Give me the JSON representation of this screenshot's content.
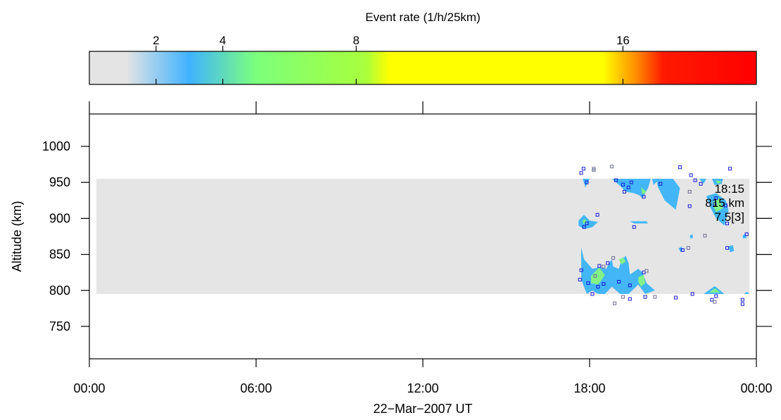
{
  "chart_data": {
    "type": "heatmap",
    "colorbar": {
      "title": "Event rate (1/h/25km)",
      "ticks": [
        2,
        4,
        8,
        16
      ],
      "range": [
        0,
        20
      ],
      "stops": [
        {
          "v": 0,
          "color": "#e4e4e4"
        },
        {
          "v": 1.1,
          "color": "#e4e4e4"
        },
        {
          "v": 3,
          "color": "#3fb3ff"
        },
        {
          "v": 5,
          "color": "#7cff7c"
        },
        {
          "v": 8.3,
          "color": "#a8ff3c"
        },
        {
          "v": 9,
          "color": "#ffff00"
        },
        {
          "v": 15.4,
          "color": "#ffff00"
        },
        {
          "v": 16.4,
          "color": "#ff8c00"
        },
        {
          "v": 17.2,
          "color": "#ff1a00"
        },
        {
          "v": 20,
          "color": "#ff0000"
        }
      ]
    },
    "xaxis": {
      "label": "22−Mar−2007 UT",
      "range_hours": [
        0,
        24
      ],
      "ticks": [
        {
          "h": 0,
          "label": "00:00"
        },
        {
          "h": 6,
          "label": "06:00"
        },
        {
          "h": 12,
          "label": "12:00"
        },
        {
          "h": 18,
          "label": "18:00"
        },
        {
          "h": 24,
          "label": "00:00"
        }
      ]
    },
    "yaxis": {
      "label": "Altitude (km)",
      "range": [
        705,
        1045
      ],
      "ticks": [
        750,
        800,
        850,
        900,
        950,
        1000
      ]
    },
    "coverage": {
      "h": [
        0.25,
        23.75
      ],
      "alt": [
        795,
        955
      ],
      "color": "#e5e5e5"
    },
    "patches": [
      {
        "level": "blue",
        "pts": [
          [
            17.75,
            955
          ],
          [
            18.0,
            955
          ],
          [
            17.85,
            943
          ]
        ]
      },
      {
        "level": "blue",
        "pts": [
          [
            18.8,
            955
          ],
          [
            19.1,
            945
          ],
          [
            19.3,
            937
          ],
          [
            19.6,
            935
          ],
          [
            19.8,
            932
          ],
          [
            19.9,
            928
          ],
          [
            20.1,
            942
          ],
          [
            20.2,
            955
          ]
        ]
      },
      {
        "level": "green",
        "pts": [
          [
            19.85,
            943
          ],
          [
            20.05,
            937
          ],
          [
            19.9,
            933
          ]
        ]
      },
      {
        "level": "blue",
        "pts": [
          [
            20.25,
            955
          ],
          [
            20.5,
            955
          ],
          [
            20.3,
            946
          ]
        ]
      },
      {
        "level": "blue",
        "pts": [
          [
            20.4,
            955
          ],
          [
            21.0,
            955
          ],
          [
            21.25,
            942
          ],
          [
            21.1,
            912
          ],
          [
            20.7,
            925
          ],
          [
            20.45,
            944
          ]
        ]
      },
      {
        "level": "blue",
        "pts": [
          [
            21.95,
            955
          ],
          [
            22.2,
            955
          ],
          [
            22.1,
            948
          ]
        ]
      },
      {
        "level": "blue",
        "pts": [
          [
            22.4,
            955
          ],
          [
            22.8,
            955
          ],
          [
            22.75,
            948
          ],
          [
            22.5,
            946
          ]
        ]
      },
      {
        "level": "green",
        "pts": [
          [
            22.55,
            953
          ],
          [
            22.75,
            951
          ],
          [
            22.6,
            948
          ]
        ]
      },
      {
        "level": "blue",
        "pts": [
          [
            22.2,
            931
          ],
          [
            22.55,
            935
          ],
          [
            22.9,
            925
          ],
          [
            23.0,
            911
          ],
          [
            22.85,
            890
          ],
          [
            22.55,
            900
          ],
          [
            22.35,
            915
          ]
        ]
      },
      {
        "level": "green",
        "pts": [
          [
            22.4,
            922
          ],
          [
            22.65,
            928
          ],
          [
            22.8,
            914
          ],
          [
            22.55,
            909
          ]
        ]
      },
      {
        "level": "blue",
        "pts": [
          [
            17.6,
            897
          ],
          [
            17.8,
            905
          ],
          [
            18.0,
            897
          ],
          [
            18.3,
            895
          ],
          [
            18.1,
            888
          ],
          [
            17.8,
            885
          ],
          [
            17.6,
            890
          ]
        ]
      },
      {
        "level": "green",
        "pts": [
          [
            17.75,
            897
          ],
          [
            17.85,
            899
          ],
          [
            17.9,
            894
          ],
          [
            17.78,
            892
          ]
        ]
      },
      {
        "level": "blue",
        "pts": [
          [
            19.45,
            896
          ],
          [
            20.05,
            896
          ],
          [
            20.1,
            893
          ],
          [
            19.6,
            893
          ]
        ]
      },
      {
        "level": "blue",
        "pts": [
          [
            21.2,
            858
          ],
          [
            21.3,
            861
          ],
          [
            21.35,
            856
          ],
          [
            21.28,
            853
          ]
        ]
      },
      {
        "level": "blue",
        "pts": [
          [
            21.6,
            876
          ],
          [
            21.7,
            878
          ],
          [
            21.72,
            873
          ],
          [
            21.63,
            872
          ]
        ]
      },
      {
        "level": "blue",
        "pts": [
          [
            23.0,
            861
          ],
          [
            23.15,
            863
          ],
          [
            23.2,
            855
          ],
          [
            23.05,
            853
          ]
        ]
      },
      {
        "level": "blue",
        "pts": [
          [
            23.5,
            876
          ],
          [
            23.6,
            879
          ],
          [
            23.65,
            873
          ],
          [
            23.53,
            872
          ]
        ]
      },
      {
        "level": "blue",
        "pts": [
          [
            17.7,
            860
          ],
          [
            17.8,
            843
          ],
          [
            18.1,
            830
          ],
          [
            18.35,
            832
          ],
          [
            18.6,
            830
          ],
          [
            18.7,
            838
          ],
          [
            18.8,
            843
          ],
          [
            18.85,
            833
          ],
          [
            19.05,
            830
          ],
          [
            19.15,
            843
          ],
          [
            19.3,
            848
          ],
          [
            19.4,
            838
          ],
          [
            19.45,
            822
          ],
          [
            19.75,
            830
          ],
          [
            19.9,
            825
          ],
          [
            20.05,
            810
          ],
          [
            20.35,
            800
          ],
          [
            20.0,
            795
          ],
          [
            19.75,
            808
          ],
          [
            19.4,
            795
          ],
          [
            19.1,
            795
          ],
          [
            18.8,
            805
          ],
          [
            18.55,
            795
          ],
          [
            18.3,
            795
          ],
          [
            18.1,
            800
          ],
          [
            17.9,
            795
          ],
          [
            17.7,
            815
          ]
        ]
      },
      {
        "level": "green",
        "pts": [
          [
            18.05,
            820
          ],
          [
            18.35,
            832
          ],
          [
            18.55,
            821
          ],
          [
            18.3,
            808
          ],
          [
            18.05,
            810
          ]
        ]
      },
      {
        "level": "green",
        "pts": [
          [
            19.05,
            843
          ],
          [
            19.2,
            846
          ],
          [
            19.3,
            840
          ],
          [
            19.15,
            836
          ]
        ]
      },
      {
        "level": "green",
        "pts": [
          [
            19.75,
            818
          ],
          [
            19.95,
            822
          ],
          [
            20.0,
            810
          ],
          [
            19.85,
            805
          ],
          [
            19.75,
            812
          ]
        ]
      },
      {
        "level": "blue",
        "pts": [
          [
            22.1,
            795
          ],
          [
            22.5,
            806
          ],
          [
            22.85,
            795
          ]
        ]
      },
      {
        "level": "green",
        "pts": [
          [
            22.3,
            797
          ],
          [
            22.5,
            803
          ],
          [
            22.7,
            797
          ]
        ]
      },
      {
        "level": "blue",
        "pts": [
          [
            23.55,
            795
          ],
          [
            23.75,
            795
          ],
          [
            23.65,
            798
          ]
        ]
      }
    ],
    "points": [
      {
        "h": 17.7,
        "alt": 963,
        "c": "b"
      },
      {
        "h": 17.78,
        "alt": 969,
        "c": "b"
      },
      {
        "h": 17.9,
        "alt": 950,
        "c": "b"
      },
      {
        "h": 18.15,
        "alt": 969,
        "c": "g"
      },
      {
        "h": 18.15,
        "alt": 967,
        "c": "g"
      },
      {
        "h": 18.8,
        "alt": 972,
        "c": "g"
      },
      {
        "h": 18.95,
        "alt": 953,
        "c": "b"
      },
      {
        "h": 19.2,
        "alt": 947,
        "c": "b"
      },
      {
        "h": 19.5,
        "alt": 950,
        "c": "b"
      },
      {
        "h": 19.4,
        "alt": 943,
        "c": "b"
      },
      {
        "h": 19.25,
        "alt": 937,
        "c": "b"
      },
      {
        "h": 19.95,
        "alt": 930,
        "c": "b"
      },
      {
        "h": 20.55,
        "alt": 948,
        "c": "b"
      },
      {
        "h": 21.25,
        "alt": 971,
        "c": "b"
      },
      {
        "h": 21.65,
        "alt": 960,
        "c": "b"
      },
      {
        "h": 21.8,
        "alt": 953,
        "c": "b"
      },
      {
        "h": 21.6,
        "alt": 937,
        "c": "g"
      },
      {
        "h": 21.6,
        "alt": 917,
        "c": "b"
      },
      {
        "h": 22.0,
        "alt": 948,
        "c": "b"
      },
      {
        "h": 22.5,
        "alt": 920,
        "c": "b"
      },
      {
        "h": 22.55,
        "alt": 928,
        "c": "b"
      },
      {
        "h": 23.05,
        "alt": 969,
        "c": "b"
      },
      {
        "h": 22.95,
        "alt": 893,
        "c": "b"
      },
      {
        "h": 22.9,
        "alt": 918,
        "c": "b"
      },
      {
        "h": 17.8,
        "alt": 888,
        "c": "b"
      },
      {
        "h": 17.9,
        "alt": 893,
        "c": "b"
      },
      {
        "h": 18.28,
        "alt": 905,
        "c": "b"
      },
      {
        "h": 19.6,
        "alt": 888,
        "c": "b"
      },
      {
        "h": 22.15,
        "alt": 876,
        "c": "g"
      },
      {
        "h": 21.35,
        "alt": 856,
        "c": "b"
      },
      {
        "h": 21.55,
        "alt": 859,
        "c": "g"
      },
      {
        "h": 22.95,
        "alt": 859,
        "c": "b"
      },
      {
        "h": 23.65,
        "alt": 878,
        "c": "b"
      },
      {
        "h": 17.7,
        "alt": 828,
        "c": "b"
      },
      {
        "h": 17.65,
        "alt": 815,
        "c": "b"
      },
      {
        "h": 17.95,
        "alt": 810,
        "c": "b"
      },
      {
        "h": 18.2,
        "alt": 820,
        "c": "g"
      },
      {
        "h": 18.3,
        "alt": 805,
        "c": "b"
      },
      {
        "h": 18.35,
        "alt": 834,
        "c": "b"
      },
      {
        "h": 18.5,
        "alt": 833,
        "c": "g"
      },
      {
        "h": 18.65,
        "alt": 838,
        "c": "b"
      },
      {
        "h": 18.85,
        "alt": 845,
        "c": "g"
      },
      {
        "h": 18.5,
        "alt": 809,
        "c": "b"
      },
      {
        "h": 18.1,
        "alt": 795,
        "c": "b"
      },
      {
        "h": 18.9,
        "alt": 782,
        "c": "g"
      },
      {
        "h": 19.05,
        "alt": 812,
        "c": "b"
      },
      {
        "h": 19.2,
        "alt": 791,
        "c": "g"
      },
      {
        "h": 19.45,
        "alt": 788,
        "c": "b"
      },
      {
        "h": 19.45,
        "alt": 807,
        "c": "b"
      },
      {
        "h": 19.95,
        "alt": 825,
        "c": "b"
      },
      {
        "h": 20.05,
        "alt": 827,
        "c": "g"
      },
      {
        "h": 20.0,
        "alt": 791,
        "c": "b"
      },
      {
        "h": 20.35,
        "alt": 791,
        "c": "g"
      },
      {
        "h": 21.1,
        "alt": 790,
        "c": "b"
      },
      {
        "h": 21.7,
        "alt": 795,
        "c": "b"
      },
      {
        "h": 22.4,
        "alt": 787,
        "c": "b"
      },
      {
        "h": 22.5,
        "alt": 784,
        "c": "g"
      },
      {
        "h": 22.55,
        "alt": 792,
        "c": "b"
      },
      {
        "h": 23.5,
        "alt": 787,
        "c": "b"
      },
      {
        "h": 23.5,
        "alt": 781,
        "c": "b"
      }
    ],
    "annotation": {
      "lines": [
        "18:15",
        "815 km",
        "7.5[3]"
      ]
    }
  }
}
